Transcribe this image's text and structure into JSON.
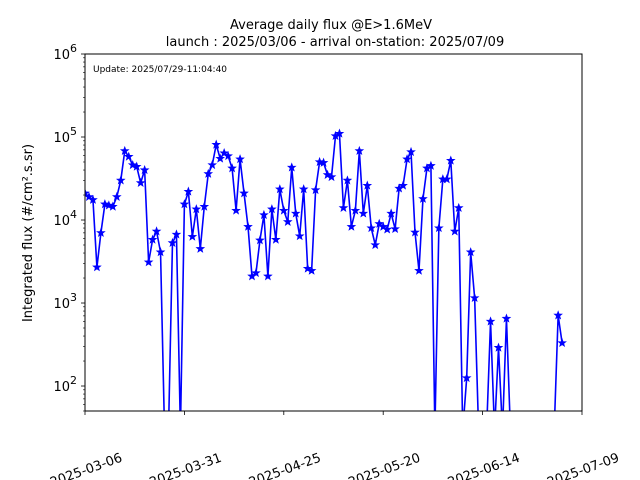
{
  "chart_data": {
    "type": "line",
    "title_line1": "Average daily flux @E>1.6MeV",
    "title_line2": "launch : 2025/03/06 - arrival on-station: 2025/07/09",
    "annotation": "Update: 2025/07/29-11:04:40",
    "ylabel": "Integrated flux (#/cm².s.sr)",
    "xlabel": "",
    "y_scale": "log",
    "ylim": [
      50,
      1000000
    ],
    "xlim": [
      "2025-03-06",
      "2025-07-09"
    ],
    "x_ticks": [
      "2025-03-06",
      "2025-03-31",
      "2025-04-25",
      "2025-05-20",
      "2025-06-14",
      "2025-07-09"
    ],
    "y_ticks": [
      {
        "value": 100,
        "base": "10",
        "exp": "2"
      },
      {
        "value": 1000,
        "base": "10",
        "exp": "3"
      },
      {
        "value": 10000,
        "base": "10",
        "exp": "4"
      },
      {
        "value": 100000,
        "base": "10",
        "exp": "5"
      },
      {
        "value": 1000000,
        "base": "10",
        "exp": "6"
      }
    ],
    "line_color": "#0000ff",
    "marker": "star",
    "grid": false,
    "series": [
      {
        "x": [
          "2025-03-06",
          "2025-03-07",
          "2025-03-08",
          "2025-03-09",
          "2025-03-10",
          "2025-03-11",
          "2025-03-12",
          "2025-03-13",
          "2025-03-14",
          "2025-03-15",
          "2025-03-16",
          "2025-03-17",
          "2025-03-18",
          "2025-03-19",
          "2025-03-20",
          "2025-03-21",
          "2025-03-22",
          "2025-03-23",
          "2025-03-24",
          "2025-03-25",
          "2025-03-26",
          "2025-03-27",
          "2025-03-28",
          "2025-03-29",
          "2025-03-30",
          "2025-03-31",
          "2025-04-01",
          "2025-04-02",
          "2025-04-03",
          "2025-04-04",
          "2025-04-05",
          "2025-04-06",
          "2025-04-07",
          "2025-04-08",
          "2025-04-09",
          "2025-04-10",
          "2025-04-11",
          "2025-04-12",
          "2025-04-13",
          "2025-04-14",
          "2025-04-15",
          "2025-04-16",
          "2025-04-17",
          "2025-04-18",
          "2025-04-19",
          "2025-04-20",
          "2025-04-21",
          "2025-04-22",
          "2025-04-23",
          "2025-04-24",
          "2025-04-25",
          "2025-04-26",
          "2025-04-27",
          "2025-04-28",
          "2025-04-29",
          "2025-04-30",
          "2025-05-01",
          "2025-05-02",
          "2025-05-03",
          "2025-05-04",
          "2025-05-05",
          "2025-05-06",
          "2025-05-07",
          "2025-05-08",
          "2025-05-09",
          "2025-05-10",
          "2025-05-11",
          "2025-05-12",
          "2025-05-13",
          "2025-05-14",
          "2025-05-15",
          "2025-05-16",
          "2025-05-17",
          "2025-05-18",
          "2025-05-19",
          "2025-05-20",
          "2025-05-21",
          "2025-05-22",
          "2025-05-23",
          "2025-05-24",
          "2025-05-25",
          "2025-05-26",
          "2025-05-27",
          "2025-05-28",
          "2025-05-29",
          "2025-05-30",
          "2025-05-31",
          "2025-06-01",
          "2025-06-02",
          "2025-06-03",
          "2025-06-04",
          "2025-06-05",
          "2025-06-06",
          "2025-06-07",
          "2025-06-08",
          "2025-06-09",
          "2025-06-10",
          "2025-06-11",
          "2025-06-12",
          "2025-06-13",
          "2025-06-14",
          "2025-06-15",
          "2025-06-16",
          "2025-06-17",
          "2025-06-18",
          "2025-06-19",
          "2025-06-20",
          "2025-06-21",
          "2025-06-22",
          "2025-06-23",
          "2025-06-24",
          "2025-06-25",
          "2025-06-26",
          "2025-06-27",
          "2025-06-28",
          "2025-06-29",
          "2025-06-30",
          "2025-07-01",
          "2025-07-02",
          "2025-07-03",
          "2025-07-04"
        ],
        "y": [
          21000,
          19000,
          17500,
          2700,
          7000,
          15500,
          15000,
          14500,
          19000,
          30000,
          68000,
          58000,
          46000,
          44000,
          28000,
          40000,
          3100,
          5800,
          7300,
          4100,
          null,
          null,
          5300,
          6700,
          null,
          15500,
          22000,
          6300,
          13500,
          4500,
          14500,
          36000,
          46000,
          81000,
          55000,
          64000,
          59000,
          42000,
          13000,
          54000,
          21000,
          8300,
          2100,
          2300,
          5700,
          11500,
          2100,
          13500,
          5800,
          23500,
          13000,
          9500,
          43000,
          12000,
          6400,
          23500,
          2600,
          2450,
          23000,
          50000,
          49000,
          35000,
          33000,
          103000,
          110000,
          14000,
          30000,
          8300,
          13000,
          68000,
          12000,
          26000,
          8000,
          5000,
          9000,
          8300,
          7700,
          12000,
          7800,
          24000,
          26000,
          54000,
          66000,
          7100,
          2450,
          18000,
          42000,
          45000,
          null,
          8000,
          31000,
          31000,
          52000,
          7300,
          14000,
          null,
          125,
          4100,
          1150,
          null,
          null,
          null,
          600,
          null,
          290,
          null,
          650,
          null,
          null,
          null,
          null,
          null,
          null,
          null,
          null,
          null,
          null,
          null,
          null,
          710,
          330
        ]
      }
    ]
  }
}
